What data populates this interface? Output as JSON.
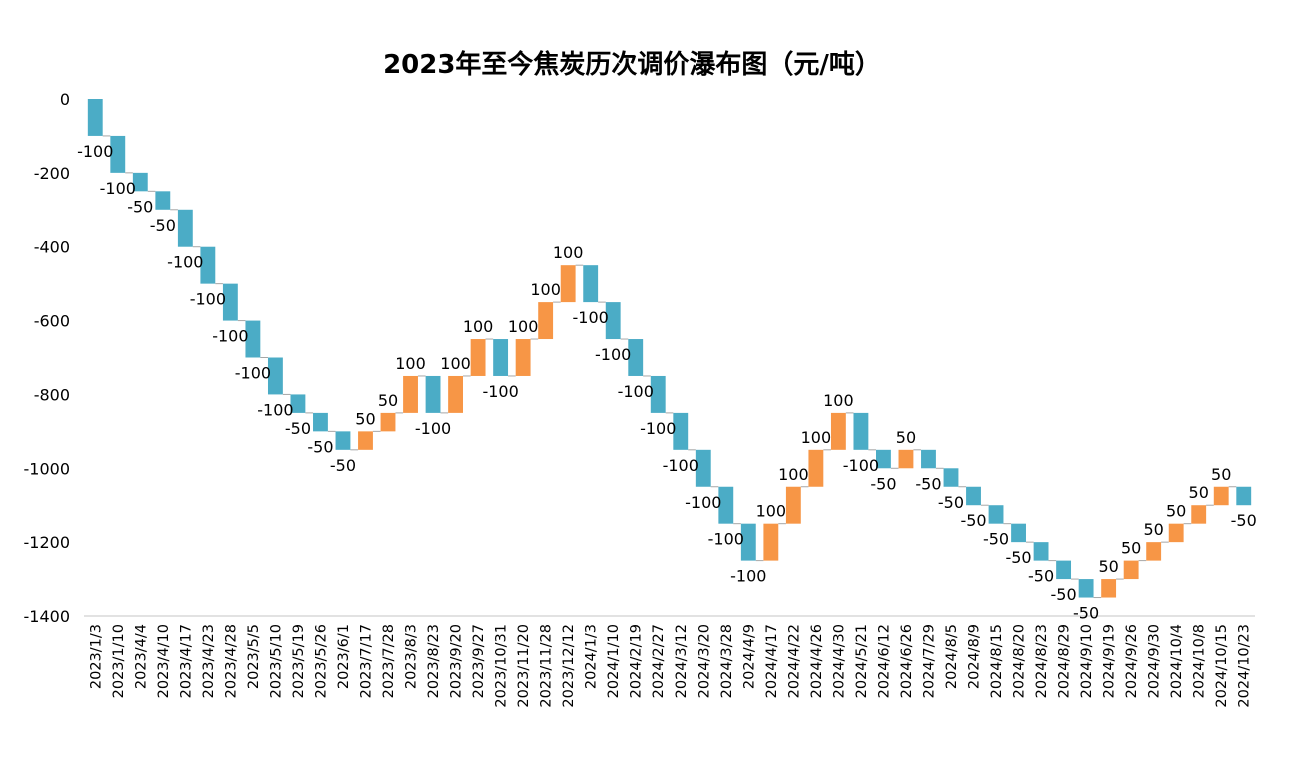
{
  "title": "2023年至今焦炭历次调价瀑布图（元/吨）",
  "colors": {
    "decrease": "#4BACC6",
    "increase": "#F79646",
    "axis": "#D9D9D9",
    "connector": "#A6A6A6"
  },
  "chart_data": {
    "type": "waterfall",
    "title": "2023年至今焦炭历次调价瀑布图（元/吨）",
    "xlabel": "",
    "ylabel": "",
    "ylim": [
      -1400,
      0
    ],
    "yticks": [
      0,
      -200,
      -400,
      -600,
      -800,
      -1000,
      -1200,
      -1400
    ],
    "grid": false,
    "legend": "none",
    "categories": [
      "2023/1/3",
      "2023/1/10",
      "2023/4/4",
      "2023/4/10",
      "2023/4/17",
      "2023/4/23",
      "2023/4/28",
      "2023/5/5",
      "2023/5/10",
      "2023/5/19",
      "2023/5/26",
      "2023/6/1",
      "2023/7/17",
      "2023/7/28",
      "2023/8/3",
      "2023/8/23",
      "2023/9/20",
      "2023/9/27",
      "2023/10/31",
      "2023/11/20",
      "2023/11/28",
      "2023/12/12",
      "2024/1/3",
      "2024/1/10",
      "2024/2/19",
      "2024/2/27",
      "2024/3/12",
      "2024/3/20",
      "2024/3/28",
      "2024/4/9",
      "2024/4/17",
      "2024/4/22",
      "2024/4/26",
      "2024/4/30",
      "2024/5/21",
      "2024/6/12",
      "2024/6/26",
      "2024/7/29",
      "2024/8/5",
      "2024/8/9",
      "2024/8/15",
      "2024/8/20",
      "2024/8/23",
      "2024/8/29",
      "2024/9/10",
      "2024/9/19",
      "2024/9/26",
      "2024/9/30",
      "2024/10/4",
      "2024/10/8",
      "2024/10/15",
      "2024/10/23"
    ],
    "values": [
      -100,
      -100,
      -50,
      -50,
      -100,
      -100,
      -100,
      -100,
      -100,
      -50,
      -50,
      -50,
      50,
      50,
      100,
      -100,
      100,
      100,
      -100,
      100,
      100,
      100,
      -100,
      -100,
      -100,
      -100,
      -100,
      -100,
      -100,
      -100,
      100,
      100,
      100,
      100,
      -100,
      -50,
      50,
      -50,
      -50,
      -50,
      -50,
      -50,
      -50,
      -50,
      -50,
      50,
      50,
      50,
      50,
      50,
      50,
      -50
    ]
  }
}
